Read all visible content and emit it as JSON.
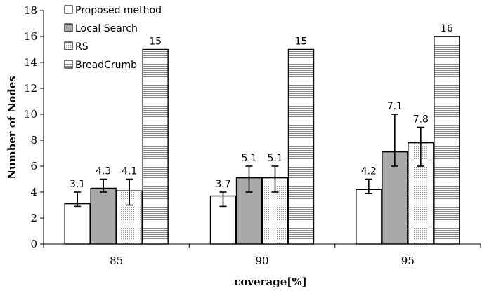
{
  "chart_data": {
    "type": "bar",
    "xlabel": "coverage[%]",
    "ylabel": "Number of Nodes",
    "ylim": [
      0,
      18
    ],
    "yticks": [
      0,
      2,
      4,
      6,
      8,
      10,
      12,
      14,
      16,
      18
    ],
    "categories": [
      "85",
      "90",
      "95"
    ],
    "legend_position": "top-left",
    "series": [
      {
        "name": "Proposed method",
        "fill": "white",
        "values": [
          3.1,
          3.7,
          4.2
        ],
        "labels": [
          "3.1",
          "3.7",
          "4.2"
        ],
        "err_low": [
          2.9,
          2.9,
          3.9
        ],
        "err_high": [
          4.0,
          4.0,
          5.0
        ]
      },
      {
        "name": "Local Search",
        "fill": "gray",
        "values": [
          4.3,
          5.1,
          7.1
        ],
        "labels": [
          "4.3",
          "5.1",
          "7.1"
        ],
        "err_low": [
          4.0,
          4.0,
          6.0
        ],
        "err_high": [
          5.0,
          6.0,
          10.0
        ]
      },
      {
        "name": "RS",
        "fill": "dots",
        "values": [
          4.1,
          5.1,
          7.8
        ],
        "labels": [
          "4.1",
          "5.1",
          "7.8"
        ],
        "err_low": [
          3.0,
          4.0,
          6.0
        ],
        "err_high": [
          5.0,
          6.0,
          9.0
        ]
      },
      {
        "name": "BreadCrumb",
        "fill": "hlines",
        "values": [
          15,
          15,
          16
        ],
        "labels": [
          "15",
          "15",
          "16"
        ],
        "err_low": [],
        "err_high": []
      }
    ]
  }
}
